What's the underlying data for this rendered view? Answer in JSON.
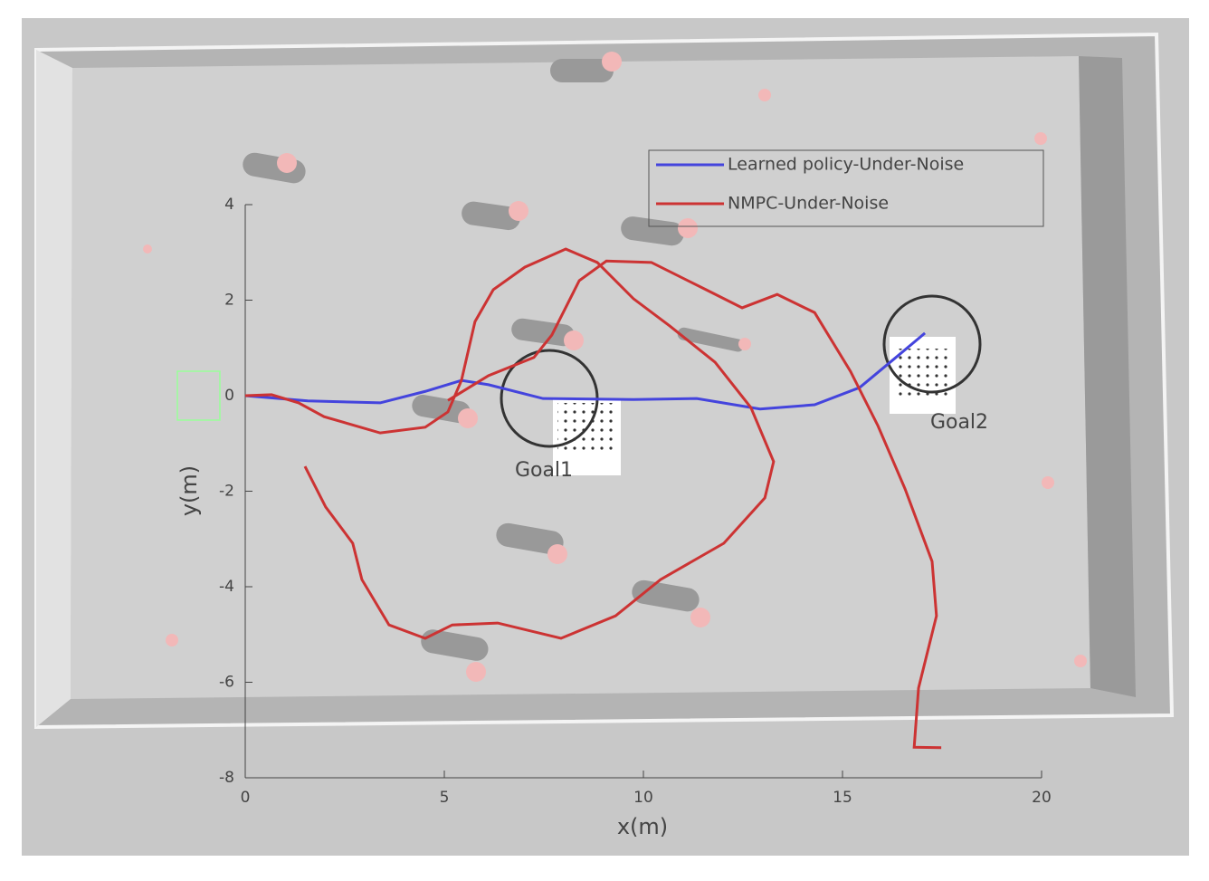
{
  "chart_data": {
    "type": "line",
    "xlabel": "x(m)",
    "ylabel": "y(m)",
    "xlim": [
      0,
      20
    ],
    "ylim": [
      -8,
      4
    ],
    "xticks": [
      0,
      5,
      10,
      15,
      20
    ],
    "yticks": [
      -8,
      -6,
      -4,
      -2,
      0,
      2,
      4
    ],
    "legend": "upper right",
    "annotations": [
      "Goal1",
      "Goal2"
    ],
    "series": [
      {
        "name": "Learned policy-Under-Noise",
        "color": "#4444dd",
        "x": [
          0,
          1.57,
          3.39,
          4.52,
          5.43,
          6.11,
          7.48,
          9.75,
          11.34,
          12.93,
          14.3,
          15.43,
          16.34,
          17.07
        ],
        "values": [
          0,
          -0.11,
          -0.15,
          0.09,
          0.32,
          0.23,
          -0.06,
          -0.08,
          -0.06,
          -0.28,
          -0.19,
          0.17,
          0.8,
          1.31
        ]
      },
      {
        "name": "NMPC-Under-Noise",
        "color": "#cc3333",
        "x": [
          0,
          0.66,
          1.34,
          1.98,
          3.39,
          4.52,
          5.09,
          5.43,
          5.77,
          6.23,
          7.02,
          8.05,
          8.84,
          9.75,
          10.66,
          11.8,
          12.7,
          13.27,
          13.05,
          12.02,
          10.43,
          9.3,
          7.93,
          6.34,
          5.2,
          4.52,
          3.61,
          2.93,
          2.7,
          2.02,
          1.5,
          null,
          5.09,
          6.11,
          7.25,
          7.7,
          8.39,
          9.07,
          10.2,
          11.57,
          12.48,
          13.36,
          14.3,
          15.2,
          15.89,
          16.57,
          17.25,
          17.36,
          16.91,
          16.8,
          17.48
        ],
        "values": [
          0,
          0.02,
          -0.15,
          -0.44,
          -0.78,
          -0.66,
          -0.34,
          0.32,
          1.55,
          2.22,
          2.69,
          3.07,
          2.79,
          2.03,
          1.46,
          0.7,
          -0.25,
          -1.38,
          -2.14,
          -3.09,
          -3.85,
          -4.61,
          -5.08,
          -4.76,
          -4.8,
          -5.08,
          -4.8,
          -3.85,
          -3.09,
          -2.33,
          -1.48,
          null,
          -0.1,
          0.42,
          0.8,
          1.27,
          2.41,
          2.82,
          2.79,
          2.22,
          1.84,
          2.12,
          1.74,
          0.51,
          -0.63,
          -1.95,
          -3.47,
          -4.61,
          -6.12,
          -7.36,
          -7.37
        ]
      }
    ]
  }
}
